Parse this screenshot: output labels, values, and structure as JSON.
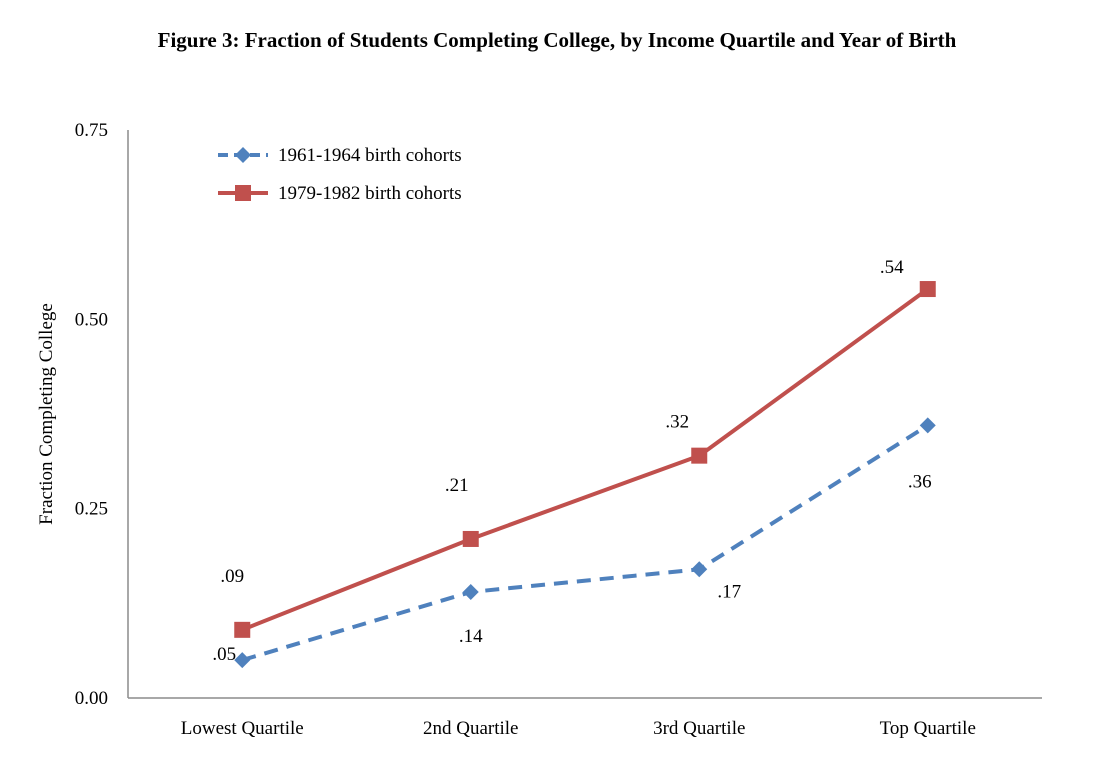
{
  "chart_data": {
    "type": "line",
    "title": "Figure 3: Fraction of Students Completing College, by Income Quartile and Year of Birth",
    "xlabel": "",
    "ylabel": "Fraction Completing College",
    "categories": [
      "Lowest Quartile",
      "2nd Quartile",
      "3rd Quartile",
      "Top Quartile"
    ],
    "ylim": [
      0,
      0.75
    ],
    "yticks": [
      "0.00",
      "0.25",
      "0.50",
      "0.75"
    ],
    "ytick_values": [
      0,
      0.25,
      0.5,
      0.75
    ],
    "grid": false,
    "legend_position": "top-left",
    "series": [
      {
        "name": "1961-1964 birth cohorts",
        "values": [
          0.05,
          0.14,
          0.17,
          0.36
        ],
        "labels": [
          ".05",
          ".14",
          ".17",
          ".36"
        ],
        "color": "#4F81BD",
        "marker": "diamond",
        "dash": "dashed"
      },
      {
        "name": "1979-1982 birth cohorts",
        "values": [
          0.09,
          0.21,
          0.32,
          0.54
        ],
        "labels": [
          ".09",
          ".21",
          ".32",
          ".54"
        ],
        "color": "#C0504D",
        "marker": "square",
        "dash": "solid"
      }
    ]
  }
}
